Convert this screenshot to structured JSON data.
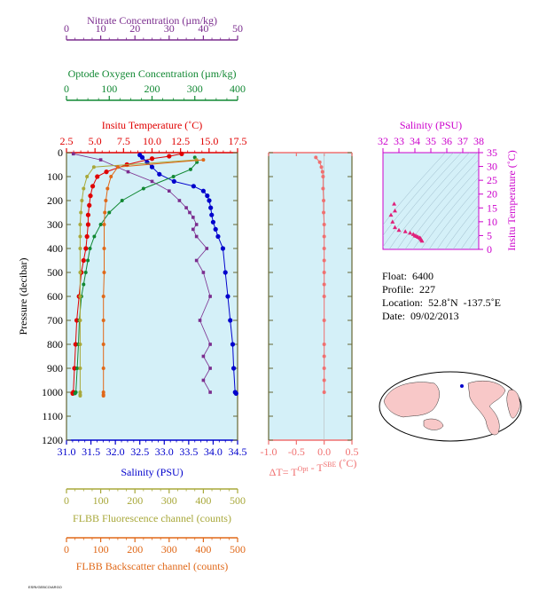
{
  "colors": {
    "nitrate": "#7b2d8e",
    "oxygen": "#118833",
    "temperature": "#e00000",
    "salinity": "#0000cc",
    "fluorescence": "#a8a83a",
    "backscatter": "#e06818",
    "delta_t": "#f07070",
    "ts_salinity": "#cc00cc",
    "ts_points": "#e0207a",
    "plot_bg": "#d4f0f8",
    "land": "#f8c8c8"
  },
  "axes": {
    "nitrate": {
      "title": "Nitrate Concentration (µm/kg)",
      "ticks": [
        "0",
        "10",
        "20",
        "30",
        "40",
        "50"
      ],
      "range": [
        0,
        50
      ]
    },
    "oxygen": {
      "title": "Optode Oxygen Concentration (µm/kg)",
      "ticks": [
        "0",
        "100",
        "200",
        "300",
        "400"
      ],
      "range": [
        0,
        400
      ]
    },
    "temperature": {
      "title": "Insitu Temperature (˚C)",
      "ticks": [
        "2.5",
        "5.0",
        "7.5",
        "10.0",
        "12.5",
        "15.0",
        "17.5"
      ],
      "range": [
        2.5,
        17.5
      ]
    },
    "salinity": {
      "title": "Salinity (PSU)",
      "ticks": [
        "31.0",
        "31.5",
        "32.0",
        "32.5",
        "33.0",
        "33.5",
        "34.0",
        "34.5"
      ],
      "range": [
        31.0,
        34.5
      ]
    },
    "pressure": {
      "title": "Pressure (decibar)",
      "ticks": [
        "0",
        "100",
        "200",
        "300",
        "400",
        "500",
        "600",
        "700",
        "800",
        "900",
        "1000",
        "1100",
        "1200"
      ],
      "range": [
        0,
        1200
      ]
    },
    "fluorescence": {
      "title": "FLBB Fluorescence channel (counts)",
      "ticks": [
        "0",
        "100",
        "200",
        "300",
        "400",
        "500"
      ],
      "range": [
        0,
        500
      ]
    },
    "backscatter": {
      "title": "FLBB Backscatter channel (counts)",
      "ticks": [
        "0",
        "100",
        "200",
        "300",
        "400",
        "500"
      ],
      "range": [
        0,
        500
      ]
    },
    "delta_t": {
      "title_main": "ΔT= T",
      "sup1": "Opt",
      "title_mid": " - T",
      "sup2": "SBE",
      "title_end": " (˚C)",
      "ticks": [
        "-1.0",
        "-0.5",
        "0.0",
        "0.5"
      ],
      "range": [
        -1.0,
        0.5
      ]
    },
    "ts_salinity": {
      "title": "Salinity (PSU)",
      "ticks": [
        "32",
        "33",
        "34",
        "35",
        "36",
        "37",
        "38"
      ],
      "range": [
        32,
        38
      ]
    },
    "ts_temperature": {
      "title": "Insitu Temperature (˚C)",
      "ticks": [
        "0",
        "5",
        "10",
        "15",
        "20",
        "25",
        "30",
        "35"
      ],
      "range": [
        0,
        35
      ]
    }
  },
  "info": {
    "float": "Float:  6400",
    "profile": "Profile:  227",
    "location": "Location:  52.8˚N  -137.5˚E",
    "date": "Date:  09/02/2013"
  },
  "footer": "ESRI/GEBCO/ARGO",
  "chart_data": [
    {
      "type": "line",
      "title": "",
      "ylabel": "Pressure (decibar)",
      "ylim": [
        1200,
        0
      ],
      "series": [
        {
          "name": "Insitu Temperature (˚C)",
          "axis": "temperature",
          "x": [
            12.6,
            11.5,
            10.0,
            7.8,
            6.0,
            5.2,
            4.8,
            4.6,
            4.5,
            4.4,
            4.4,
            4.3,
            4.2,
            4.0,
            3.8,
            3.6,
            3.4,
            3.3,
            3.2,
            3.1,
            3.05
          ],
          "y": [
            5,
            15,
            25,
            50,
            80,
            100,
            140,
            180,
            220,
            260,
            300,
            350,
            400,
            450,
            500,
            600,
            700,
            800,
            900,
            1000,
            1005
          ]
        },
        {
          "name": "Salinity (PSU)",
          "axis": "salinity",
          "x": [
            32.5,
            32.55,
            32.65,
            32.75,
            32.9,
            33.2,
            33.6,
            33.8,
            33.88,
            33.92,
            33.95,
            33.97,
            34.0,
            34.05,
            34.1,
            34.2,
            34.25,
            34.3,
            34.35,
            34.4,
            34.42,
            34.45,
            34.47
          ],
          "y": [
            10,
            20,
            40,
            60,
            90,
            120,
            140,
            160,
            180,
            200,
            230,
            260,
            290,
            320,
            350,
            400,
            500,
            600,
            700,
            800,
            900,
            1000,
            1005
          ]
        },
        {
          "name": "Optode Oxygen Concentration (µm/kg)",
          "axis": "oxygen",
          "x": [
            300,
            305,
            290,
            250,
            180,
            130,
            100,
            80,
            65,
            55,
            50,
            45,
            40,
            35,
            30,
            28,
            25,
            22,
            20
          ],
          "y": [
            20,
            40,
            70,
            100,
            150,
            200,
            250,
            300,
            350,
            400,
            450,
            500,
            550,
            600,
            700,
            800,
            900,
            1000,
            1005
          ]
        },
        {
          "name": "Nitrate Concentration (µm/kg)",
          "axis": "nitrate",
          "x": [
            2,
            10,
            18,
            25,
            30,
            33,
            35,
            36,
            37,
            38,
            37,
            38,
            41,
            38,
            40,
            42,
            39,
            42,
            40,
            42,
            40,
            42
          ],
          "y": [
            5,
            30,
            80,
            120,
            160,
            200,
            230,
            250,
            270,
            300,
            320,
            350,
            400,
            450,
            500,
            600,
            700,
            800,
            850,
            900,
            950,
            1000
          ]
        },
        {
          "name": "FLBB Fluorescence channel (counts)",
          "axis": "fluorescence",
          "x": [
            380,
            80,
            60,
            50,
            45,
            42,
            40,
            40,
            40,
            40,
            40,
            40,
            40,
            40,
            40,
            40,
            40
          ],
          "y": [
            30,
            60,
            100,
            150,
            200,
            250,
            300,
            350,
            400,
            500,
            600,
            700,
            800,
            900,
            1000,
            1010,
            1015
          ]
        },
        {
          "name": "FLBB Backscatter channel (counts)",
          "axis": "backscatter",
          "x": [
            400,
            150,
            130,
            120,
            115,
            112,
            110,
            110,
            110,
            108,
            108,
            108,
            108,
            108,
            108,
            108
          ],
          "y": [
            30,
            60,
            100,
            150,
            200,
            250,
            300,
            400,
            500,
            600,
            700,
            800,
            900,
            1000,
            1010,
            1015
          ]
        }
      ]
    },
    {
      "type": "scatter",
      "title": "",
      "xlabel": "ΔT= TOpt - TSBE (˚C)",
      "ylabel": "Pressure (decibar)",
      "xlim": [
        -1.0,
        0.5
      ],
      "ylim": [
        1200,
        0
      ],
      "series": [
        {
          "x": [
            -0.15,
            -0.08,
            -0.05,
            -0.03,
            -0.02,
            -0.02,
            -0.01,
            -0.01,
            0.0,
            0.0,
            0.0,
            0.0,
            0.0,
            0.0,
            0.0,
            0.0,
            0.0,
            0.0,
            0.0,
            0.0,
            0.0
          ],
          "y": [
            20,
            40,
            60,
            80,
            100,
            150,
            200,
            250,
            300,
            350,
            400,
            450,
            500,
            550,
            600,
            700,
            800,
            850,
            900,
            950,
            1000
          ]
        }
      ]
    },
    {
      "type": "scatter",
      "title": "",
      "xlabel": "Salinity (PSU)",
      "ylabel": "Insitu Temperature (˚C)",
      "xlim": [
        32,
        38
      ],
      "ylim": [
        0,
        35
      ],
      "series": [
        {
          "x": [
            32.5,
            32.6,
            32.75,
            33.0,
            33.4,
            33.7,
            33.9,
            34.0,
            34.1,
            34.2,
            34.3,
            34.35,
            34.4,
            34.45,
            32.7,
            32.75
          ],
          "y": [
            12.5,
            10.0,
            8.0,
            7.0,
            6.5,
            6.0,
            5.5,
            5.0,
            4.8,
            4.5,
            4.2,
            4.0,
            3.5,
            3.1,
            16.5,
            14.0
          ]
        }
      ]
    }
  ]
}
